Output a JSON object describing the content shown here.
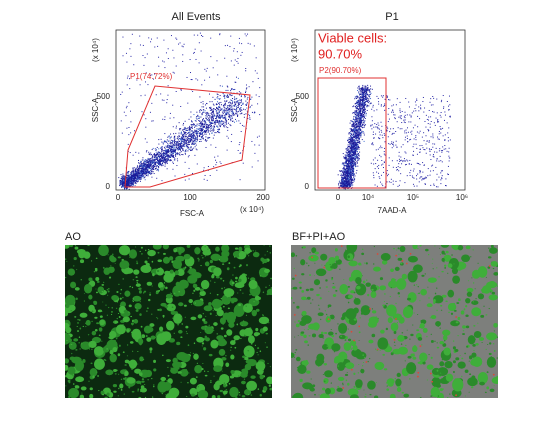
{
  "plots": [
    {
      "title": "All Events",
      "y_exponent": "(x 10⁴)",
      "x_exponent": "(x 10⁴)",
      "x_label": "FSC-A",
      "y_label": "SSC-A",
      "yticks": [
        "500",
        "0"
      ],
      "xticks": [
        "0",
        "100",
        "200"
      ],
      "gate_label": "P1(74.72%)"
    },
    {
      "title": "P1",
      "y_exponent": "(x 10⁴)",
      "x_label": "7AAD-A",
      "y_label": "SSC-A",
      "yticks": [
        "500",
        "0"
      ],
      "xticks": [
        "0",
        "10⁴",
        "10⁵",
        "10⁶"
      ],
      "gate_label": "P2(90.70%)",
      "callout": [
        "Viable cells:",
        "90.70%"
      ]
    }
  ],
  "images": [
    {
      "label": "AO"
    },
    {
      "label": "BF+PI+AO"
    }
  ]
}
